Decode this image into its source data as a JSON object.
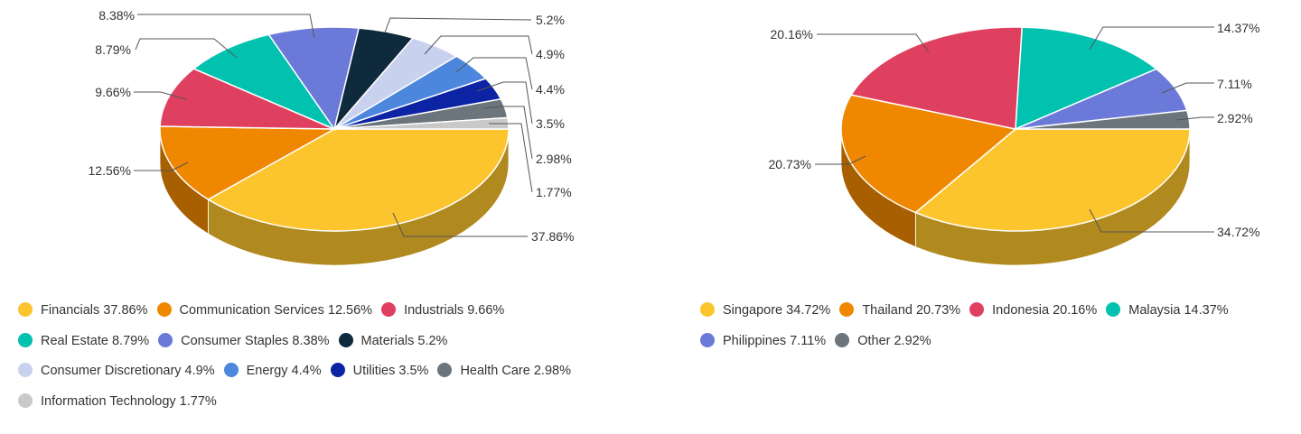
{
  "chart_data": [
    {
      "type": "pie",
      "style": "3d",
      "slices": [
        {
          "label": "Financials",
          "value": 37.86,
          "display": "37.86%",
          "legend": "Financials 37.86%",
          "color": "#FCC42D"
        },
        {
          "label": "Communication Services",
          "value": 12.56,
          "display": "12.56%",
          "legend": "Communication Services 12.56%",
          "color": "#EF8800"
        },
        {
          "label": "Industrials",
          "value": 9.66,
          "display": "9.66%",
          "legend": "Industrials 9.66%",
          "color": "#E0405F"
        },
        {
          "label": "Real Estate",
          "value": 8.79,
          "display": "8.79%",
          "legend": "Real Estate 8.79%",
          "color": "#00C2AE"
        },
        {
          "label": "Consumer Staples",
          "value": 8.38,
          "display": "8.38%",
          "legend": "Consumer Staples 8.38%",
          "color": "#6B7AD8"
        },
        {
          "label": "Materials",
          "value": 5.2,
          "display": "5.2%",
          "legend": "Materials 5.2%",
          "color": "#0F2A3C"
        },
        {
          "label": "Consumer Discretionary",
          "value": 4.9,
          "display": "4.9%",
          "legend": "Consumer Discretionary 4.9%",
          "color": "#C8D2EE"
        },
        {
          "label": "Energy",
          "value": 4.4,
          "display": "4.4%",
          "legend": "Energy 4.4%",
          "color": "#4D86DD"
        },
        {
          "label": "Utilities",
          "value": 3.5,
          "display": "3.5%",
          "legend": "Utilities 3.5%",
          "color": "#0C23A3"
        },
        {
          "label": "Health Care",
          "value": 2.98,
          "display": "2.98%",
          "legend": "Health Care 2.98%",
          "color": "#6C757B"
        },
        {
          "label": "Information Technology",
          "value": 1.77,
          "display": "1.77%",
          "legend": "Information Technology 1.77%",
          "color": "#C9C9C9"
        }
      ]
    },
    {
      "type": "pie",
      "style": "3d",
      "slices": [
        {
          "label": "Singapore",
          "value": 34.72,
          "display": "34.72%",
          "legend": "Singapore 34.72%",
          "color": "#FCC42D"
        },
        {
          "label": "Thailand",
          "value": 20.73,
          "display": "20.73%",
          "legend": "Thailand 20.73%",
          "color": "#EF8800"
        },
        {
          "label": "Indonesia",
          "value": 20.16,
          "display": "20.16%",
          "legend": "Indonesia 20.16%",
          "color": "#E0405F"
        },
        {
          "label": "Malaysia",
          "value": 14.37,
          "display": "14.37%",
          "legend": "Malaysia 14.37%",
          "color": "#00C2AE"
        },
        {
          "label": "Philippines",
          "value": 7.11,
          "display": "7.11%",
          "legend": "Philippines 7.11%",
          "color": "#6B7AD8"
        },
        {
          "label": "Other",
          "value": 2.92,
          "display": "2.92%",
          "legend": "Other 2.92%",
          "color": "#6C757B"
        }
      ]
    }
  ]
}
